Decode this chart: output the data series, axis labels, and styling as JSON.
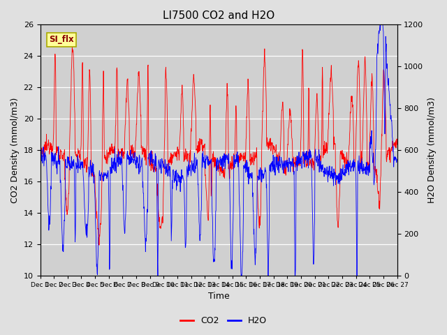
{
  "title": "LI7500 CO2 and H2O",
  "xlabel": "Time",
  "ylabel_left": "CO2 Density (mmol/m3)",
  "ylabel_right": "H2O Density (mmol/m3)",
  "ylim_left": [
    10,
    26
  ],
  "ylim_right": [
    0,
    1200
  ],
  "yticks_left": [
    10,
    12,
    14,
    16,
    18,
    20,
    22,
    24,
    26
  ],
  "yticks_right": [
    0,
    200,
    400,
    600,
    800,
    1000,
    1200
  ],
  "co2_color": "#ff0000",
  "h2o_color": "#0000ff",
  "fig_bg_color": "#e0e0e0",
  "plot_bg_color": "#d0d0d0",
  "legend_label_co2": "CO2",
  "legend_label_h2o": "H2O",
  "annotation_text": "SI_flx",
  "title_fontsize": 11,
  "label_fontsize": 9,
  "tick_fontsize": 8,
  "legend_fontsize": 9,
  "n_days": 26,
  "points_per_day": 48
}
